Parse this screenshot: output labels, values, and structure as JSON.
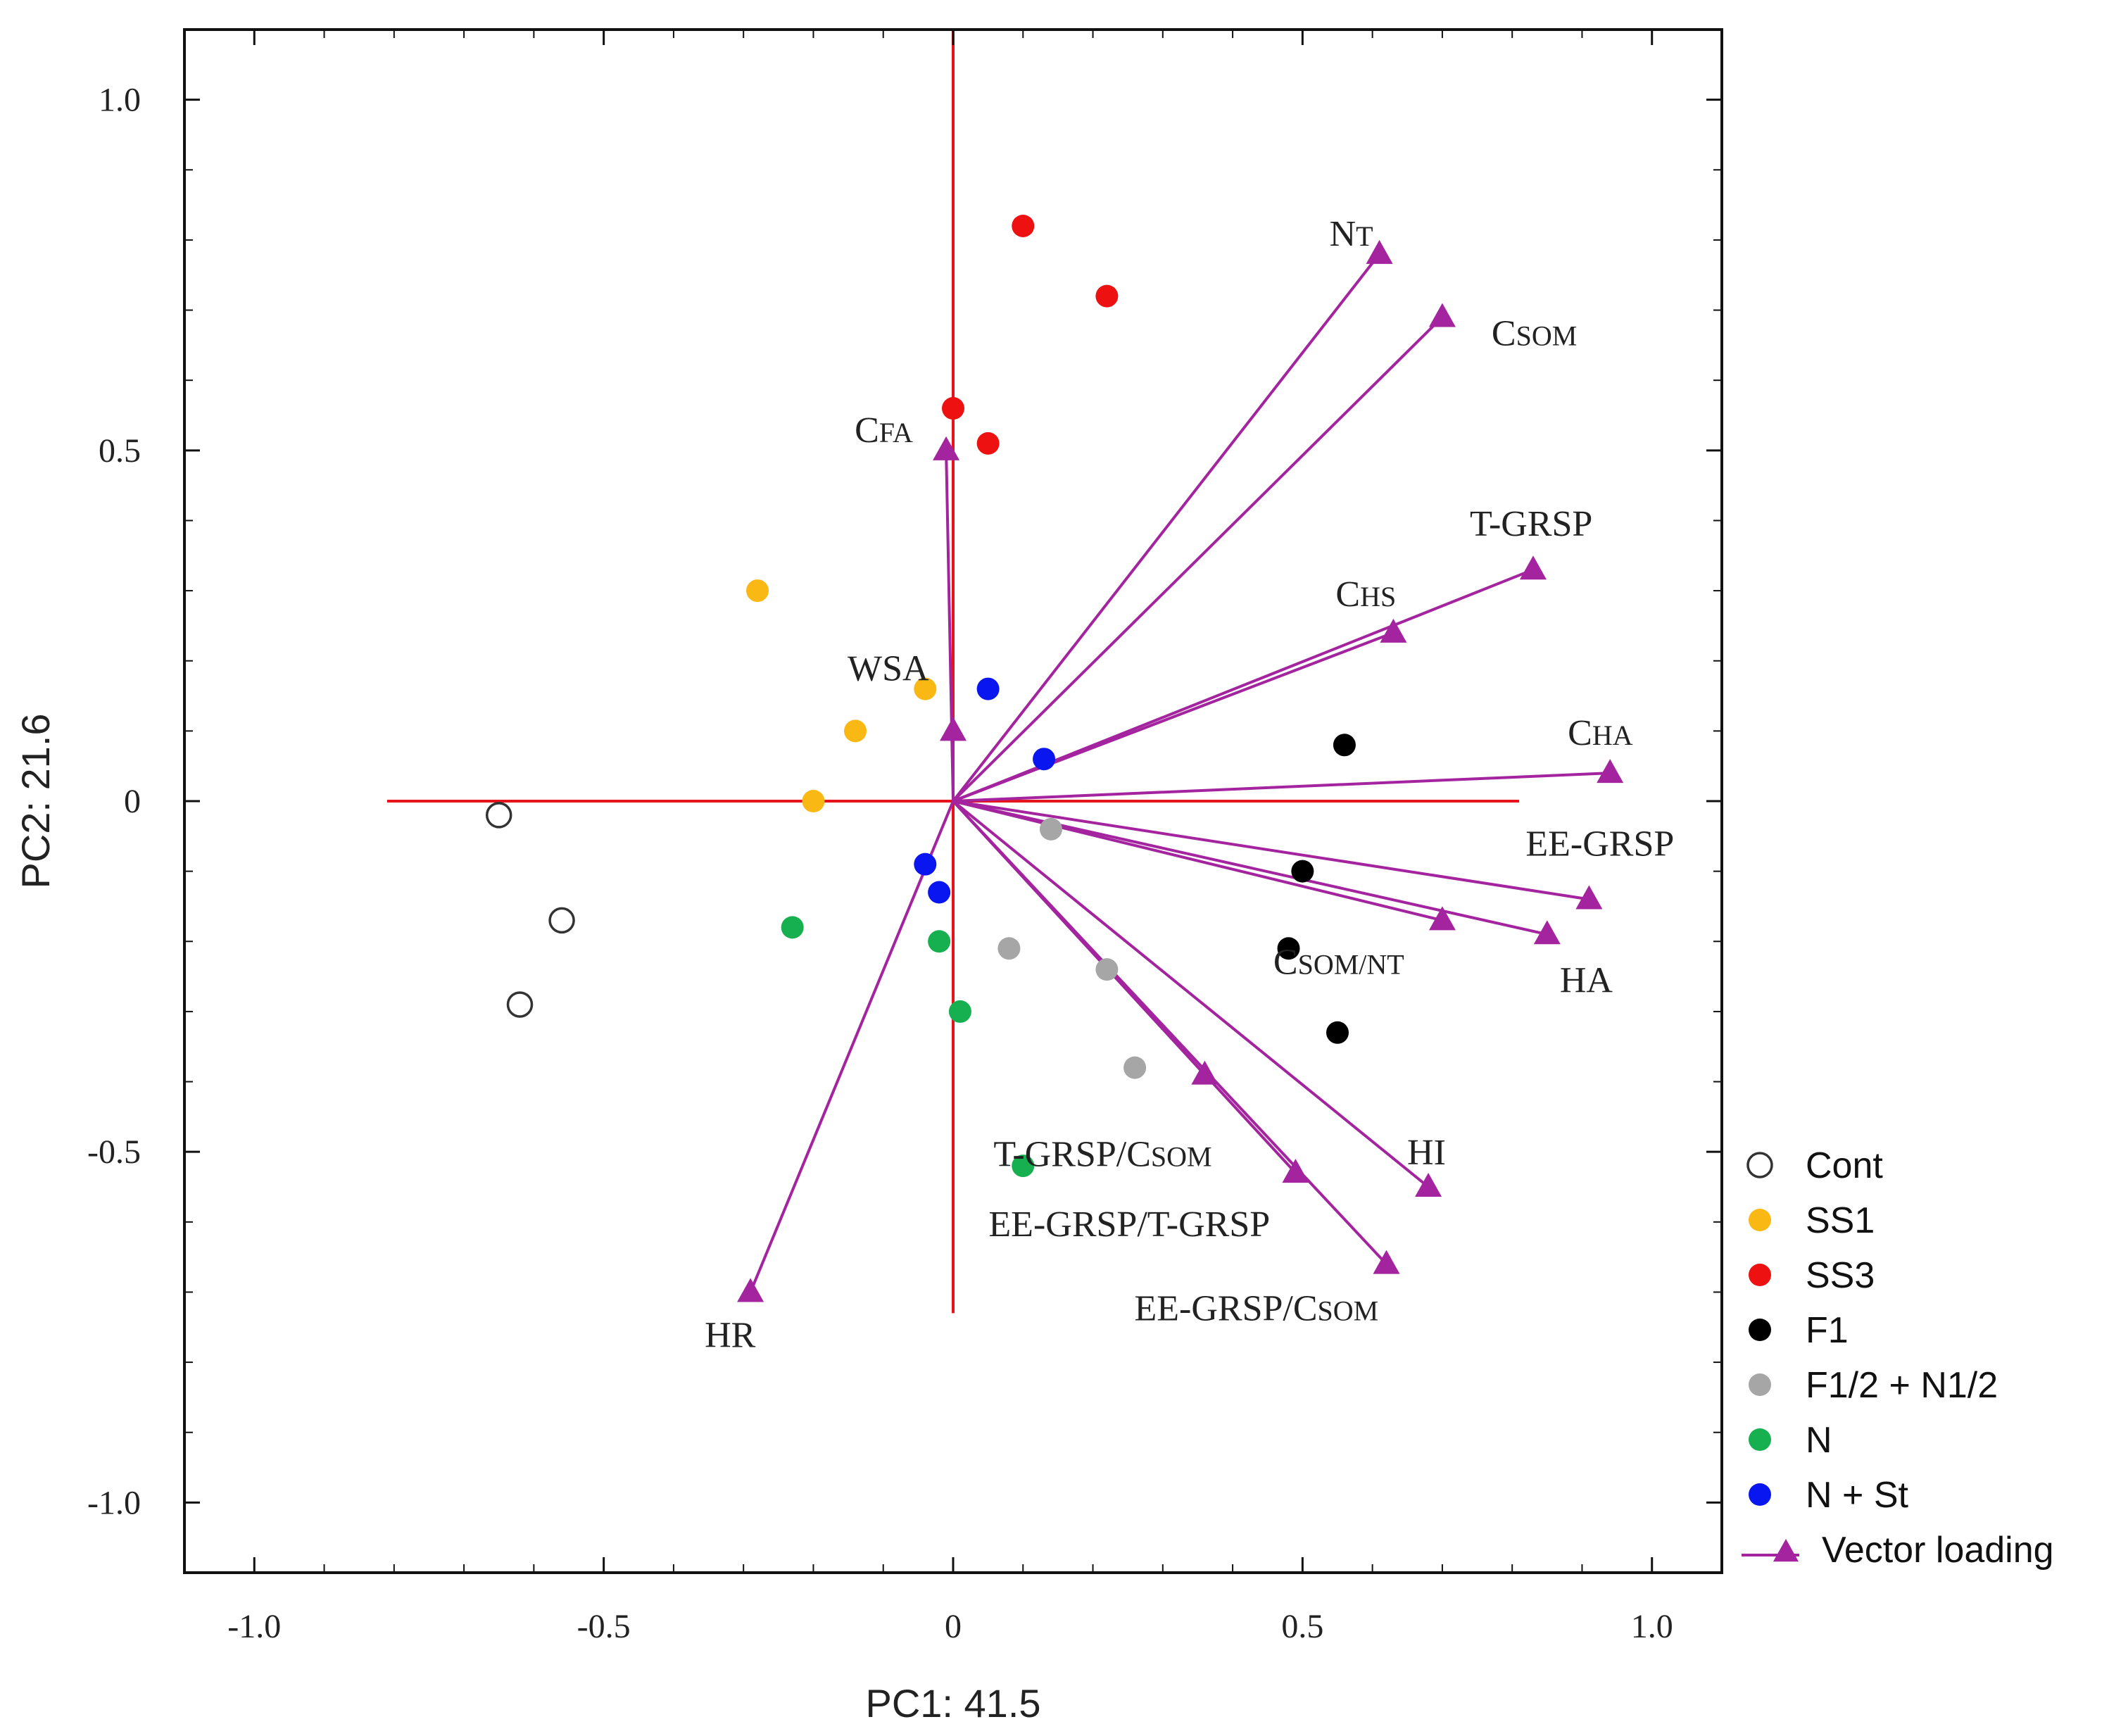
{
  "chart_data": {
    "type": "scatter",
    "xlabel": "PC1: 41.5",
    "ylabel": "PC2: 21.6",
    "xlim": [
      -1.1,
      1.1
    ],
    "ylim": [
      -1.1,
      1.1
    ],
    "xticks": [
      -1.0,
      -0.5,
      0,
      0.5,
      1.0
    ],
    "yticks": [
      -1.0,
      -0.5,
      0,
      0.5,
      1.0
    ],
    "xtick_labels": [
      "-1.0",
      "-0.5",
      "0",
      "0.5",
      "1.0"
    ],
    "ytick_labels": [
      "-1.0",
      "-0.5",
      "0",
      "0.5",
      "1.0"
    ],
    "grid": false,
    "legend_position": "right-bottom",
    "reference_lines": {
      "color": "#e8141b",
      "x_range": [
        -0.81,
        0.81
      ],
      "y_range": [
        -0.73,
        1.1
      ]
    },
    "series": [
      {
        "name": "Cont",
        "color": "#ffffff",
        "stroke": "#333333",
        "hollow": true,
        "x": [
          -0.65,
          -0.56,
          -0.62
        ],
        "y": [
          -0.02,
          -0.17,
          -0.29
        ]
      },
      {
        "name": "SS1",
        "color": "#f9b814",
        "stroke": "#f9b814",
        "hollow": false,
        "x": [
          -0.28,
          -0.04,
          -0.14,
          -0.2
        ],
        "y": [
          0.3,
          0.16,
          0.1,
          0.0
        ]
      },
      {
        "name": "SS3",
        "color": "#ee1111",
        "stroke": "#ee1111",
        "hollow": false,
        "x": [
          0.1,
          0.22,
          0.0,
          0.05
        ],
        "y": [
          0.82,
          0.72,
          0.56,
          0.51
        ]
      },
      {
        "name": "F1",
        "color": "#000000",
        "stroke": "#000000",
        "hollow": false,
        "x": [
          0.56,
          0.5,
          0.48,
          0.55
        ],
        "y": [
          0.08,
          -0.1,
          -0.21,
          -0.33
        ]
      },
      {
        "name": "F1/2 + N1/2",
        "color": "#a6a6a6",
        "stroke": "#a6a6a6",
        "hollow": false,
        "x": [
          0.14,
          0.08,
          0.22,
          0.26
        ],
        "y": [
          -0.04,
          -0.21,
          -0.24,
          -0.38
        ]
      },
      {
        "name": "N",
        "color": "#17b050",
        "stroke": "#17b050",
        "hollow": false,
        "x": [
          -0.23,
          -0.02,
          0.01,
          0.1
        ],
        "y": [
          -0.18,
          -0.2,
          -0.3,
          -0.52
        ]
      },
      {
        "name": "N + St",
        "color": "#0a16f0",
        "stroke": "#0a16f0",
        "hollow": false,
        "x": [
          0.05,
          0.13,
          -0.04,
          -0.02
        ],
        "y": [
          0.16,
          0.06,
          -0.09,
          -0.13
        ]
      }
    ],
    "vectors": {
      "name": "Vector loading",
      "color": "#a3249e",
      "items": [
        {
          "label": "N",
          "sub": "T",
          "x": 0.61,
          "y": 0.78
        },
        {
          "label": "C",
          "sub": "SOM",
          "x": 0.7,
          "y": 0.69
        },
        {
          "label": "C",
          "sub": "FA",
          "x": -0.01,
          "y": 0.5
        },
        {
          "label": "T-GRSP",
          "sub": "",
          "x": 0.83,
          "y": 0.33
        },
        {
          "label": "C",
          "sub": "HS",
          "x": 0.63,
          "y": 0.24
        },
        {
          "label": "WSA",
          "sub": "",
          "x": 0.0,
          "y": 0.1
        },
        {
          "label": "C",
          "sub": "HA",
          "x": 0.94,
          "y": 0.04
        },
        {
          "label": "EE-GRSP",
          "sub": "",
          "x": 0.91,
          "y": -0.14
        },
        {
          "label": "C",
          "sub": "SOM/N",
          "sub2": "T",
          "x": 0.7,
          "y": -0.17
        },
        {
          "label": "HA",
          "sub": "",
          "x": 0.85,
          "y": -0.19
        },
        {
          "label": "HI",
          "sub": "",
          "x": 0.68,
          "y": -0.55
        },
        {
          "label": "T-GRSP/C",
          "sub": "SOM",
          "x": 0.36,
          "y": -0.39
        },
        {
          "label": "EE-GRSP/T-GRSP",
          "sub": "",
          "x": 0.49,
          "y": -0.53
        },
        {
          "label": "EE-GRSP/C",
          "sub": "SOM",
          "x": 0.62,
          "y": -0.66
        },
        {
          "label": "HR",
          "sub": "",
          "x": -0.29,
          "y": -0.7
        }
      ]
    }
  }
}
